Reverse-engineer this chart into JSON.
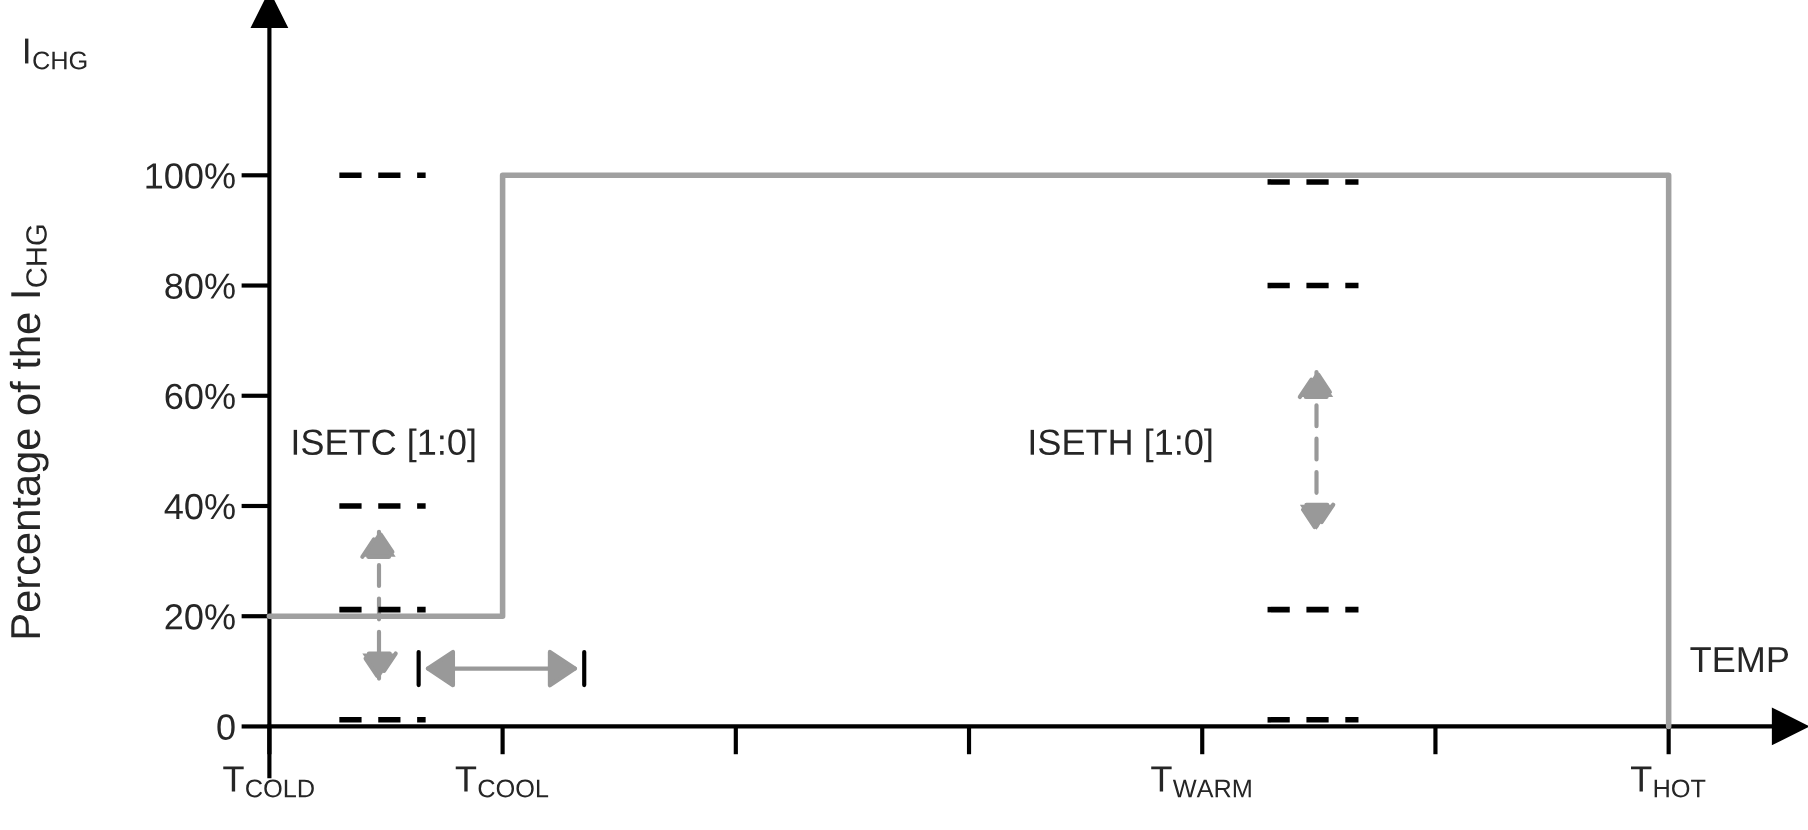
{
  "chart_data": {
    "type": "step",
    "title": "I$_{CHG}$",
    "ylabel": "Percentage of the I$_{CHG}$",
    "xlabel": "TEMP",
    "categories": [
      "T$_{COLD}$",
      "T$_{COOL}$",
      null,
      null,
      "T$_{WARM}$",
      null,
      "T$_{HOT}$"
    ],
    "ylim": [
      -9,
      130
    ],
    "yticks": [
      {
        "value": 0,
        "label": "0"
      },
      {
        "value": 20,
        "label": "20%"
      },
      {
        "value": 40,
        "label": "40%"
      },
      {
        "value": 60,
        "label": "60%"
      },
      {
        "value": 80,
        "label": "80%"
      },
      {
        "value": 100,
        "label": "100%"
      }
    ],
    "series": [
      {
        "color": "#a0a0a0",
        "line_style": "solid",
        "values": [
          20,
          100,
          100,
          100,
          100,
          100,
          0
        ]
      }
    ],
    "annotations": [
      "ISETC [1:0]",
      "ISETH [1:0]"
    ],
    "legend": false,
    "grid": false
  }
}
